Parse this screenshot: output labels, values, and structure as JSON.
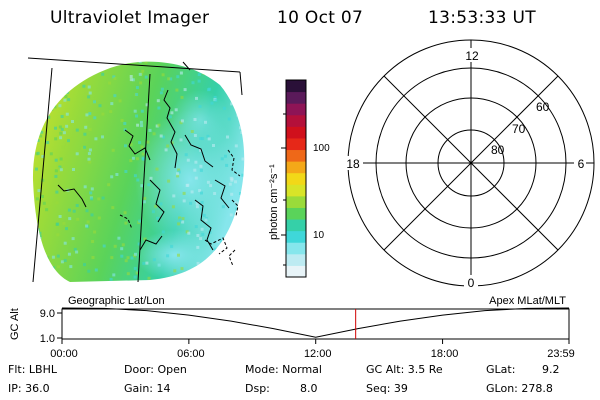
{
  "header": {
    "instrument": "Ultraviolet Imager",
    "date": "10 Oct 07",
    "time": "13:53:33 UT"
  },
  "colorbar": {
    "unit_label": "photon cm⁻²s⁻¹",
    "ticks": [
      {
        "label": "100",
        "value": 100
      },
      {
        "label": "10",
        "value": 10
      }
    ],
    "colors": [
      "#e8f4f8",
      "#bdebf2",
      "#86e6ec",
      "#3fd7d9",
      "#35d0a8",
      "#5ad35a",
      "#9adb3a",
      "#d8e428",
      "#f2d818",
      "#f4a818",
      "#ef6818",
      "#e62818",
      "#d0101c",
      "#b4103a",
      "#8e1456",
      "#5a1a5a",
      "#2a1038"
    ]
  },
  "polar_plot": {
    "clock_labels": [
      "12",
      "6",
      "0",
      "18"
    ],
    "lat_labels": [
      "60",
      "70",
      "80"
    ]
  },
  "map_panel": {
    "left_label": "Geographic Lat/Lon",
    "right_label": "Apex MLat/MLT"
  },
  "chart_data": {
    "type": "line",
    "title": "",
    "ylabel": "GC Alt",
    "y_tick_labels": [
      "9.0",
      "1.0"
    ],
    "x_tick_labels": [
      "00:00",
      "06:00",
      "12:00",
      "18:00",
      "23:59"
    ],
    "ylim": [
      1.0,
      9.0
    ],
    "x_hours": [
      0,
      2,
      4,
      6,
      8,
      10,
      12,
      14,
      16,
      18,
      20,
      22,
      23.98
    ],
    "values": [
      9.0,
      8.9,
      8.3,
      7.1,
      5.5,
      3.5,
      1.2,
      3.5,
      5.5,
      7.1,
      8.3,
      8.9,
      9.0
    ],
    "current_time_hour": 13.89,
    "marker_color": "#d00000"
  },
  "info": {
    "flt": "Flt: LBHL",
    "ip": "IP: 36.0",
    "door": "Door: Open",
    "gain": "Gain: 14",
    "mode": "Mode: Normal",
    "dsp_label": "Dsp:",
    "dsp_value": "8.0",
    "gc_alt": "GC Alt: 3.5 Re",
    "seq": "Seq: 39",
    "glat_label": "GLat:",
    "glat_value": "9.2",
    "glon": "GLon: 278.8"
  }
}
